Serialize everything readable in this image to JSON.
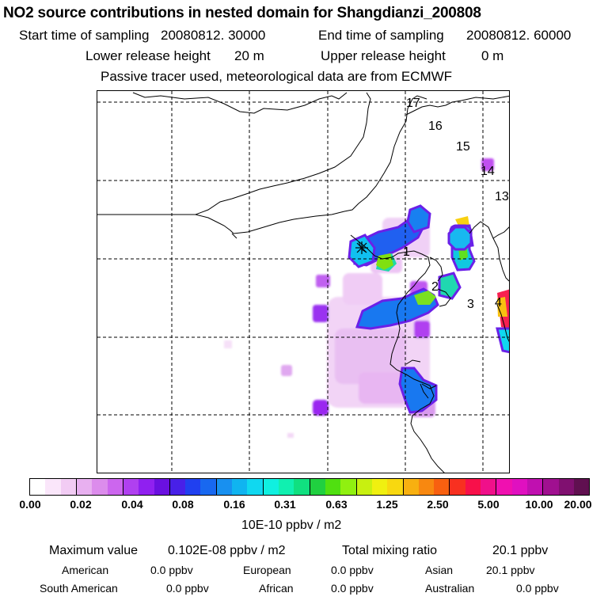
{
  "header": {
    "title": "NO2 source contributions in nested domain for Shangdianzi_200808",
    "start_label": "Start time of sampling",
    "start_value": "20080812. 30000",
    "end_label": "End time of sampling",
    "end_value": "20080812. 60000",
    "lower_label": "Lower release height",
    "lower_value": "20 m",
    "upper_label": "Upper release height",
    "upper_value": "0 m",
    "note": "Passive tracer used, meteorological data are from ECMWF"
  },
  "map": {
    "trajectory_labels": [
      "17",
      "16",
      "15",
      "14",
      "13",
      "1",
      "2",
      "3",
      "4"
    ],
    "site_marker": "Shangdianzi station"
  },
  "colorbar": {
    "ticks": [
      "0.00",
      "0.02",
      "0.04",
      "0.08",
      "0.16",
      "0.31",
      "0.63",
      "1.25",
      "2.50",
      "5.00",
      "10.00",
      "20.00"
    ],
    "unit": "10E-10 ppbv / m2",
    "colors": [
      "#ffffff",
      "#fae6fa",
      "#f2ccf4",
      "#e8b0f0",
      "#dc8cec",
      "#cc66ee",
      "#b040f0",
      "#9020f0",
      "#6a10e0",
      "#4820e8",
      "#2040f0",
      "#1868f0",
      "#1890f0",
      "#10b4f0",
      "#10d8f0",
      "#10f0e0",
      "#10f0b0",
      "#10e080",
      "#20d040",
      "#50e010",
      "#90f010",
      "#c8f010",
      "#f0f010",
      "#f8d810",
      "#f8b010",
      "#f88810",
      "#f86010",
      "#f83020",
      "#f8104a",
      "#f0108a",
      "#f010b0",
      "#e010c0",
      "#c010b0",
      "#a01090",
      "#801070",
      "#601050"
    ]
  },
  "stats": {
    "max_label": "Maximum value",
    "max_value": "0.102E-08 ppbv / m2",
    "total_label": "Total mixing ratio",
    "total_value": "20.1 ppbv",
    "regions": [
      {
        "name": "American",
        "value": "0.0 ppbv"
      },
      {
        "name": "European",
        "value": "0.0 ppbv"
      },
      {
        "name": "Asian",
        "value": "20.1 ppbv"
      },
      {
        "name": "South American",
        "value": "0.0 ppbv"
      },
      {
        "name": "African",
        "value": "0.0 ppbv"
      },
      {
        "name": "Australian",
        "value": "0.0 ppbv"
      }
    ]
  }
}
